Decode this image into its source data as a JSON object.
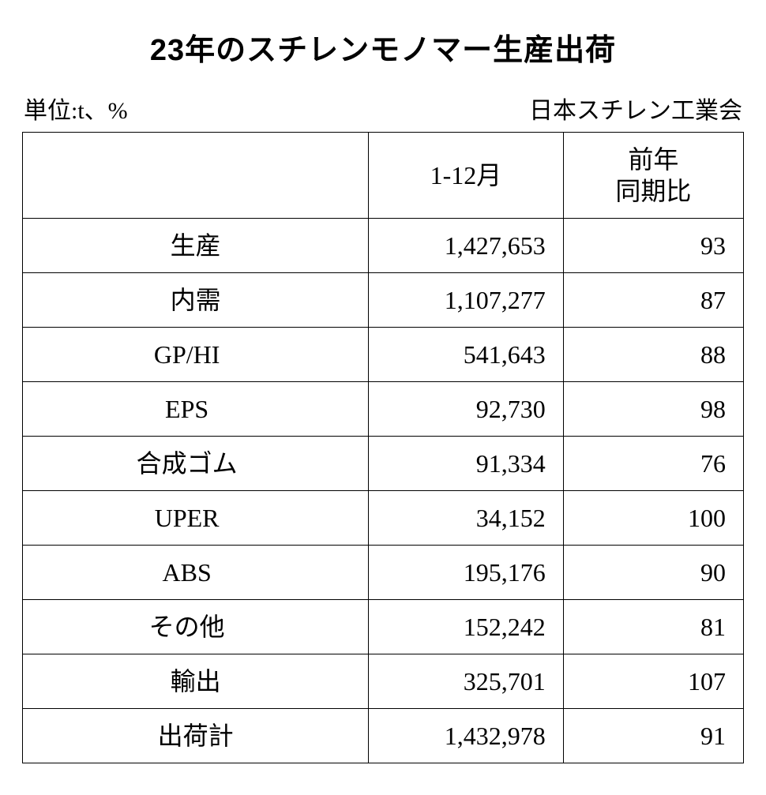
{
  "title": "23年のスチレンモノマー生産出荷",
  "unit_label": "単位:t、%",
  "source_label": "日本スチレン工業会",
  "table": {
    "columns": [
      "",
      "1-12月",
      "前年\n同期比"
    ],
    "column_widths_pct": [
      48,
      27,
      25
    ],
    "header_fontsize_pt": 24,
    "cell_fontsize_pt": 24,
    "border_color": "#000000",
    "background_color": "#ffffff",
    "text_color": "#000000",
    "rows": [
      {
        "label": "生産",
        "indent": 0,
        "value": "1,427,653",
        "yoy": "93"
      },
      {
        "label": "内需",
        "indent": 0,
        "value": "1,107,277",
        "yoy": "87"
      },
      {
        "label": "GP/HI",
        "indent": 1,
        "value": "541,643",
        "yoy": "88"
      },
      {
        "label": "EPS",
        "indent": 1,
        "value": "92,730",
        "yoy": "98"
      },
      {
        "label": "合成ゴム",
        "indent": 1,
        "value": "91,334",
        "yoy": "76"
      },
      {
        "label": "UPER",
        "indent": 1,
        "value": "34,152",
        "yoy": "100"
      },
      {
        "label": "ABS",
        "indent": 1,
        "value": "195,176",
        "yoy": "90"
      },
      {
        "label": "その他",
        "indent": 1,
        "value": "152,242",
        "yoy": "81"
      },
      {
        "label": "輸出",
        "indent": 0,
        "value": "325,701",
        "yoy": "107"
      },
      {
        "label": "出荷計",
        "indent": 0,
        "value": "1,432,978",
        "yoy": "91"
      }
    ]
  },
  "title_fontsize_pt": 29,
  "meta_fontsize_pt": 23
}
